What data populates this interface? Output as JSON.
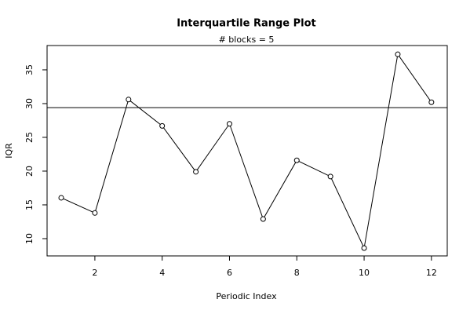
{
  "chart_data": {
    "type": "line",
    "title": "Interquartile Range Plot",
    "subtitle": "# blocks =  5",
    "x_label": "Periodic Index",
    "y_label": "IQR",
    "x": [
      1,
      2,
      3,
      4,
      5,
      6,
      7,
      8,
      9,
      10,
      11,
      12
    ],
    "series": [
      {
        "color": "#000000",
        "values": [
          16.05,
          13.8,
          30.6,
          26.7,
          19.9,
          27.0,
          12.9,
          21.6,
          19.2,
          8.6,
          37.3,
          30.2
        ]
      }
    ],
    "hline": 29.4,
    "xlim": [
      0.58,
      12.47
    ],
    "ylim": [
      7.44,
      38.6
    ],
    "xticks": [
      2,
      4,
      6,
      8,
      10,
      12
    ],
    "yticks": [
      10,
      15,
      20,
      25,
      30,
      35
    ]
  }
}
